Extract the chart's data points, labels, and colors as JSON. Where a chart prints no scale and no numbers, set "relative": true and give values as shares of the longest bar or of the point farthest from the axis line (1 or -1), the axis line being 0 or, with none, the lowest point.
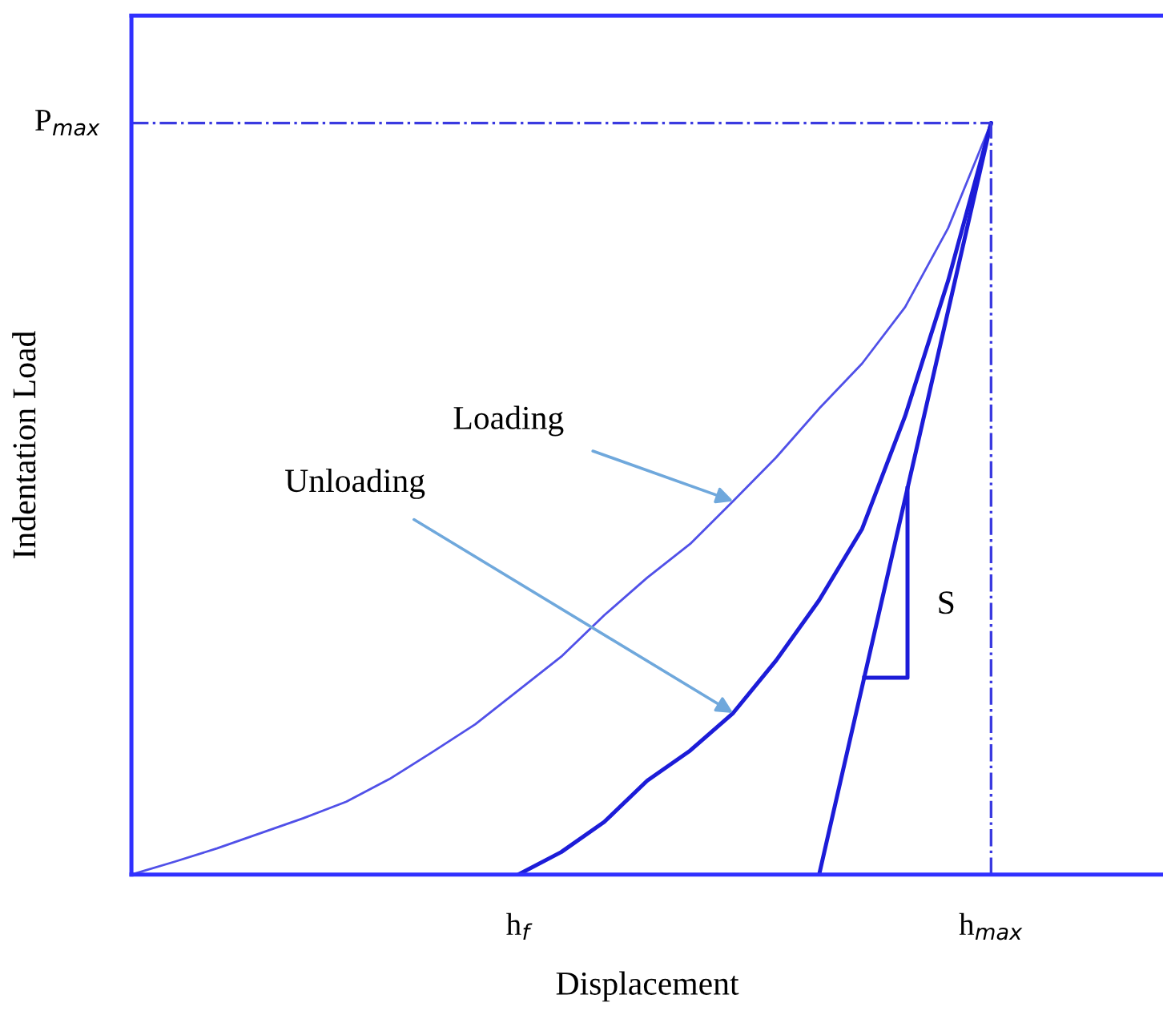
{
  "chart_data": {
    "type": "line",
    "relative": true,
    "xlabel": "Displacement",
    "ylabel": "Indentation Load",
    "categories": [
      null,
      null,
      null,
      null,
      null,
      null,
      null,
      null,
      null,
      null,
      null,
      null,
      null,
      null,
      null,
      null,
      null,
      null,
      null,
      null,
      null,
      null,
      null,
      null,
      null
    ],
    "series": [
      {
        "color": "#5050e8",
        "values": [
          0,
          0.017,
          0.035,
          0.055,
          0.075,
          0.097,
          0.127,
          0.163,
          0.2,
          0.245,
          0.29,
          0.345,
          0.395,
          0.44,
          0.497,
          0.555,
          0.62,
          0.68,
          0.755,
          0.86,
          1,
          null,
          null,
          null,
          null
        ]
      },
      {
        "color": "#1c1cd8",
        "values": [
          null,
          null,
          null,
          null,
          null,
          null,
          null,
          null,
          null,
          0,
          0.03,
          0.07,
          0.125,
          0.165,
          0.215,
          0.285,
          0.365,
          0.46,
          0.61,
          0.79,
          1,
          null,
          null,
          null,
          null
        ]
      },
      {
        "color": "#1c1cd8",
        "values": [
          null,
          null,
          null,
          null,
          null,
          null,
          null,
          null,
          null,
          null,
          null,
          null,
          null,
          null,
          null,
          null,
          0,
          0.25,
          0.5,
          0.75,
          1,
          null,
          null,
          null,
          null
        ]
      }
    ],
    "ref_lines": [
      {
        "axis": "y",
        "value": 1,
        "label": "P$_{max}$",
        "color": "#3a3ae0",
        "line_style": "dashdot"
      }
    ],
    "annotations": [
      "Loading",
      "Unloading",
      "S",
      "h$_{f}$",
      "h$_{max}$"
    ]
  }
}
